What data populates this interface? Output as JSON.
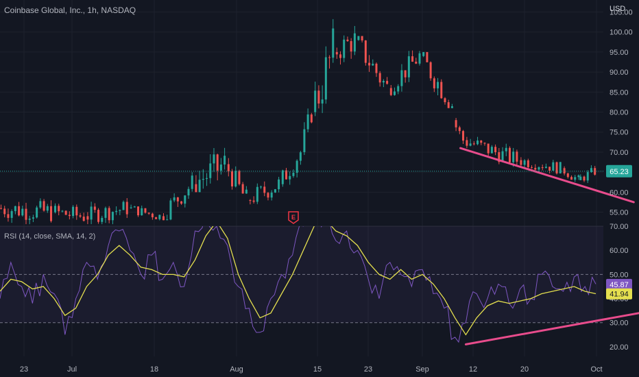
{
  "header": {
    "title": "Coinbase Global, Inc., 1h, NASDAQ",
    "currency": "USD"
  },
  "rsi_header": {
    "title": "RSI (14, close, SMA, 14, 2)"
  },
  "colors": {
    "background": "#131722",
    "up": "#26a69a",
    "down": "#ef5350",
    "rsi_line": "#7e57c2",
    "rsi_ma": "#e4df4f",
    "trendline": "#e84c8c",
    "price_tag": "#26a69a",
    "grid": "#1e222d",
    "axis_text": "#b2b5be"
  },
  "earnings_marker": {
    "label": "E"
  },
  "chart_data": [
    {
      "type": "candlestick",
      "title": "Coinbase Global, Inc., 1h, NASDAQ",
      "y_axis_label": "USD",
      "ylim": [
        51.5,
        108
      ],
      "y_ticks": [
        "55.00",
        "60.00",
        "65.00",
        "70.00",
        "75.00",
        "80.00",
        "85.00",
        "90.00",
        "95.00",
        "100.00",
        "105.00"
      ],
      "x_ticks": [
        "23",
        "Jul",
        "18",
        "Aug",
        "15",
        "23",
        "Sep",
        "12",
        "20",
        "Oct"
      ],
      "last_price": "65.23",
      "segments": [
        {
          "from_day": 0,
          "to_day": 5,
          "open": 56,
          "close": 55,
          "high": 64,
          "low": 52
        },
        {
          "from_day": 5,
          "to_day": 8,
          "open": 55,
          "close": 54,
          "high": 62,
          "low": 52
        },
        {
          "from_day": 8,
          "to_day": 12,
          "open": 54,
          "close": 56,
          "high": 62,
          "low": 52
        },
        {
          "from_day": 12,
          "to_day": 15,
          "open": 56,
          "close": 54,
          "high": 58,
          "low": 52
        },
        {
          "from_day": 15,
          "to_day": 18,
          "open": 54,
          "close": 62,
          "high": 65,
          "low": 53
        },
        {
          "from_day": 18,
          "to_day": 21,
          "open": 62,
          "close": 67,
          "high": 79,
          "low": 60
        },
        {
          "from_day": 21,
          "to_day": 23,
          "open": 67,
          "close": 58,
          "high": 69,
          "low": 56
        },
        {
          "from_day": 23,
          "to_day": 26,
          "open": 58,
          "close": 62,
          "high": 66,
          "low": 55
        },
        {
          "from_day": 26,
          "to_day": 28,
          "open": 62,
          "close": 70,
          "high": 72,
          "low": 60
        },
        {
          "from_day": 28,
          "to_day": 29,
          "open": 70,
          "close": 80,
          "high": 82,
          "low": 68
        },
        {
          "from_day": 29,
          "to_day": 31,
          "open": 80,
          "close": 95,
          "high": 108,
          "low": 79
        },
        {
          "from_day": 31,
          "to_day": 33,
          "open": 95,
          "close": 98,
          "high": 103,
          "low": 88
        },
        {
          "from_day": 33,
          "to_day": 36,
          "open": 98,
          "close": 86,
          "high": 99,
          "low": 84
        },
        {
          "from_day": 36,
          "to_day": 39,
          "open": 86,
          "close": 94,
          "high": 96,
          "low": 84
        },
        {
          "from_day": 39,
          "to_day": 42,
          "open": 94,
          "close": 82,
          "high": 95,
          "low": 81
        },
        {
          "from_day": 42,
          "to_day": 43,
          "open": 78,
          "close": 73,
          "high": 79,
          "low": 71
        },
        {
          "from_day": 43,
          "to_day": 48,
          "open": 73,
          "close": 68,
          "high": 76,
          "low": 66
        },
        {
          "from_day": 48,
          "to_day": 52,
          "open": 68,
          "close": 66,
          "high": 71,
          "low": 64
        },
        {
          "from_day": 52,
          "to_day": 53.5,
          "open": 66,
          "close": 63,
          "high": 68,
          "low": 62
        },
        {
          "from_day": 53.5,
          "to_day": 55,
          "open": 63,
          "close": 65.23,
          "high": 68,
          "low": 62
        }
      ],
      "trendline": {
        "from": {
          "day": 42.5,
          "price": 71
        },
        "to": {
          "day": 58.5,
          "price": 57.5
        }
      }
    },
    {
      "type": "line",
      "title": "RSI (14, close, SMA, 14, 2)",
      "ylim": [
        16,
        70
      ],
      "y_ticks": [
        "20.00",
        "30.00",
        "40.00",
        "50.00",
        "60.00",
        "70.00"
      ],
      "bands": [
        30,
        50,
        70
      ],
      "series": [
        {
          "name": "RSI",
          "last": "45.87",
          "points": [
            [
              0,
              40
            ],
            [
              1,
              55
            ],
            [
              2,
              45
            ],
            [
              3,
              38
            ],
            [
              4,
              50
            ],
            [
              5,
              42
            ],
            [
              6,
              25
            ],
            [
              7,
              40
            ],
            [
              8,
              55
            ],
            [
              9,
              48
            ],
            [
              10,
              62
            ],
            [
              11,
              68
            ],
            [
              12,
              60
            ],
            [
              13,
              50
            ],
            [
              14,
              58
            ],
            [
              15,
              48
            ],
            [
              16,
              55
            ],
            [
              17,
              45
            ],
            [
              18,
              68
            ],
            [
              19,
              75
            ],
            [
              20,
              70
            ],
            [
              21,
              62
            ],
            [
              22,
              45
            ],
            [
              23,
              36
            ],
            [
              24,
              26
            ],
            [
              25,
              40
            ],
            [
              26,
              50
            ],
            [
              27,
              58
            ],
            [
              28,
              70
            ],
            [
              29,
              76
            ],
            [
              30,
              72
            ],
            [
              31,
              64
            ],
            [
              32,
              68
            ],
            [
              33,
              60
            ],
            [
              34,
              48
            ],
            [
              35,
              40
            ],
            [
              36,
              55
            ],
            [
              37,
              50
            ],
            [
              38,
              45
            ],
            [
              39,
              52
            ],
            [
              40,
              42
            ],
            [
              41,
              36
            ],
            [
              42,
              24
            ],
            [
              43,
              30
            ],
            [
              44,
              42
            ],
            [
              45,
              40
            ],
            [
              46,
              46
            ],
            [
              47,
              38
            ],
            [
              48,
              44
            ],
            [
              49,
              40
            ],
            [
              50,
              50
            ],
            [
              51,
              45
            ],
            [
              52,
              43
            ],
            [
              53,
              49
            ],
            [
              54,
              45
            ],
            [
              55,
              46
            ]
          ]
        },
        {
          "name": "RSI-based MA",
          "last": "41.94",
          "points": [
            [
              0,
              43
            ],
            [
              1,
              48
            ],
            [
              2,
              47
            ],
            [
              3,
              44
            ],
            [
              4,
              45
            ],
            [
              5,
              40
            ],
            [
              6,
              33
            ],
            [
              7,
              36
            ],
            [
              8,
              45
            ],
            [
              9,
              50
            ],
            [
              10,
              58
            ],
            [
              11,
              62
            ],
            [
              12,
              58
            ],
            [
              13,
              53
            ],
            [
              14,
              52
            ],
            [
              15,
              50
            ],
            [
              16,
              50
            ],
            [
              17,
              49
            ],
            [
              18,
              56
            ],
            [
              19,
              66
            ],
            [
              20,
              72
            ],
            [
              21,
              65
            ],
            [
              22,
              50
            ],
            [
              23,
              40
            ],
            [
              24,
              32
            ],
            [
              25,
              34
            ],
            [
              26,
              42
            ],
            [
              27,
              50
            ],
            [
              28,
              60
            ],
            [
              29,
              70
            ],
            [
              30,
              73
            ],
            [
              31,
              68
            ],
            [
              32,
              66
            ],
            [
              33,
              62
            ],
            [
              34,
              55
            ],
            [
              35,
              50
            ],
            [
              36,
              48
            ],
            [
              37,
              52
            ],
            [
              38,
              48
            ],
            [
              39,
              50
            ],
            [
              40,
              46
            ],
            [
              41,
              40
            ],
            [
              42,
              32
            ],
            [
              43,
              25
            ],
            [
              44,
              32
            ],
            [
              45,
              37
            ],
            [
              46,
              39
            ],
            [
              47,
              38
            ],
            [
              48,
              39
            ],
            [
              49,
              40
            ],
            [
              50,
              42
            ],
            [
              51,
              43
            ],
            [
              52,
              44
            ],
            [
              53,
              45
            ],
            [
              54,
              43
            ],
            [
              55,
              42
            ]
          ]
        }
      ],
      "trendline": {
        "from": {
          "day": 43,
          "value": 21
        },
        "to": {
          "day": 59,
          "value": 34
        }
      }
    }
  ]
}
